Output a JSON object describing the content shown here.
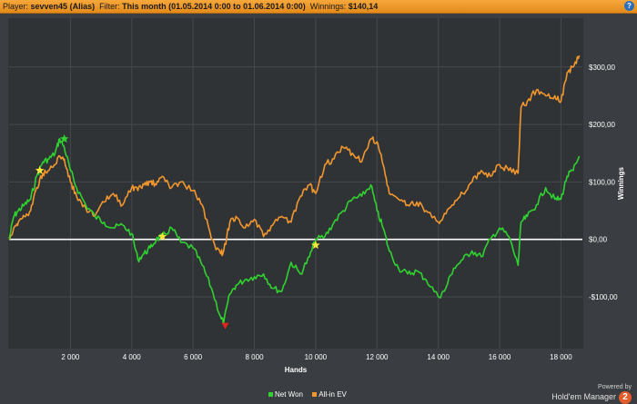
{
  "header": {
    "player_label": "Player:",
    "player_value": "sevven45 (Alias)",
    "filter_label": "Filter:",
    "filter_value": "This month (01.05.2014 0:00 to 01.06.2014 0:00)",
    "winnings_label": "Winnings:",
    "winnings_value": "$140,14",
    "help_glyph": "?"
  },
  "brand": {
    "powered": "Powered by",
    "name": "Hold'em Manager",
    "version": "2"
  },
  "colors": {
    "net_won": "#2fd22f",
    "all_in_ev": "#f2962e",
    "zero_line": "#ffffff",
    "grid": "#45494e",
    "marker_star": "#f5e63a",
    "marker_down": "#e0231c"
  },
  "chart_data": {
    "type": "line",
    "xlabel": "Hands",
    "ylabel": "Winnings",
    "xlim": [
      0,
      18700
    ],
    "ylim": [
      -190,
      385
    ],
    "x_ticks": [
      2000,
      4000,
      6000,
      8000,
      10000,
      12000,
      14000,
      16000,
      18000
    ],
    "x_tick_labels": [
      "2 000",
      "4 000",
      "6 000",
      "8 000",
      "10 000",
      "12 000",
      "14 000",
      "16 000",
      "18 000"
    ],
    "y_ticks": [
      -100,
      0,
      100,
      200,
      300
    ],
    "y_tick_labels": [
      "-$100,00",
      "$0,00",
      "$100,00",
      "$200,00",
      "$300,00"
    ],
    "grid": true,
    "legend_position": "bottom-center",
    "series": [
      {
        "name": "Net Won",
        "x": [
          0,
          150,
          300,
          500,
          700,
          900,
          1100,
          1300,
          1500,
          1650,
          1800,
          2000,
          2200,
          2500,
          2800,
          3100,
          3400,
          3700,
          4000,
          4200,
          4400,
          4600,
          4800,
          5000,
          5300,
          5600,
          6000,
          6300,
          6600,
          6900,
          7000,
          7200,
          7400,
          7700,
          8000,
          8300,
          8600,
          8900,
          9200,
          9500,
          9800,
          10000,
          10300,
          10600,
          10900,
          11200,
          11500,
          11800,
          12000,
          12200,
          12400,
          12700,
          13000,
          13300,
          13600,
          14000,
          14200,
          14500,
          14800,
          15100,
          15400,
          15700,
          16000,
          16300,
          16600,
          16700,
          16900,
          17200,
          17500,
          17800,
          18000,
          18200,
          18400,
          18600
        ],
        "y": [
          0,
          40,
          50,
          60,
          70,
          110,
          135,
          140,
          150,
          175,
          160,
          120,
          90,
          60,
          40,
          30,
          20,
          25,
          10,
          -35,
          -25,
          -15,
          0,
          5,
          20,
          -5,
          -15,
          -45,
          -85,
          -135,
          -145,
          -95,
          -80,
          -70,
          -65,
          -60,
          -85,
          -90,
          -40,
          -60,
          -30,
          0,
          5,
          30,
          50,
          70,
          75,
          95,
          50,
          20,
          -20,
          -50,
          -60,
          -55,
          -70,
          -100,
          -90,
          -50,
          -35,
          -20,
          -30,
          0,
          20,
          5,
          -45,
          30,
          40,
          60,
          90,
          70,
          70,
          110,
          120,
          145
        ]
      },
      {
        "name": "All-in EV",
        "x": [
          0,
          150,
          300,
          500,
          700,
          900,
          1100,
          1300,
          1500,
          1650,
          1800,
          2000,
          2200,
          2500,
          2800,
          3100,
          3400,
          3700,
          4000,
          4200,
          4400,
          4600,
          4800,
          5000,
          5300,
          5600,
          6000,
          6300,
          6600,
          6900,
          7000,
          7200,
          7400,
          7700,
          8000,
          8300,
          8600,
          8900,
          9200,
          9500,
          9800,
          10000,
          10300,
          10600,
          10900,
          11200,
          11500,
          11800,
          12000,
          12200,
          12400,
          12700,
          13000,
          13300,
          13600,
          14000,
          14200,
          14500,
          14800,
          15100,
          15400,
          15700,
          16000,
          16300,
          16600,
          16700,
          16900,
          17200,
          17500,
          17800,
          18000,
          18200,
          18400,
          18600
        ],
        "y": [
          0,
          20,
          30,
          40,
          50,
          90,
          115,
          120,
          130,
          145,
          140,
          100,
          75,
          55,
          40,
          65,
          80,
          60,
          90,
          85,
          95,
          100,
          95,
          110,
          90,
          100,
          85,
          60,
          0,
          -25,
          -20,
          30,
          40,
          20,
          35,
          5,
          25,
          40,
          30,
          75,
          95,
          80,
          130,
          140,
          160,
          150,
          135,
          175,
          170,
          130,
          80,
          70,
          60,
          65,
          50,
          30,
          45,
          60,
          80,
          100,
          120,
          110,
          130,
          120,
          115,
          230,
          240,
          260,
          250,
          250,
          240,
          290,
          300,
          320
        ]
      }
    ],
    "markers": [
      {
        "x": 1000,
        "y": 120,
        "shape": "star"
      },
      {
        "x": 1800,
        "y": 175,
        "shape": "star-green"
      },
      {
        "x": 5000,
        "y": 5,
        "shape": "star"
      },
      {
        "x": 10000,
        "y": -10,
        "shape": "star"
      },
      {
        "x": 7050,
        "y": -150,
        "shape": "down-triangle"
      }
    ]
  }
}
